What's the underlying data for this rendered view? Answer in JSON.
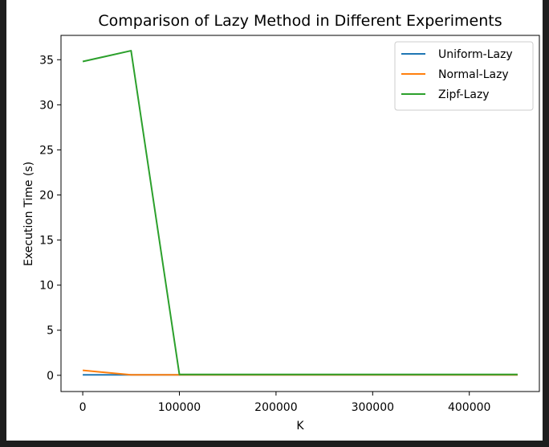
{
  "chart_data": {
    "type": "line",
    "title": "Comparison of Lazy Method in Different Experiments",
    "xlabel": "K",
    "ylabel": "Execution Time (s)",
    "xlim": [
      -22500,
      472500
    ],
    "ylim": [
      -1.8,
      37.7
    ],
    "xticks": [
      0,
      100000,
      200000,
      300000,
      400000
    ],
    "yticks": [
      0,
      5,
      10,
      15,
      20,
      25,
      30,
      35
    ],
    "grid": false,
    "legend_position": "top-right",
    "x": [
      0,
      50000,
      100000,
      150000,
      200000,
      250000,
      300000,
      350000,
      400000,
      450000
    ],
    "series": [
      {
        "name": "Uniform-Lazy",
        "color": "#1f77b4",
        "values": [
          0.05,
          0.05,
          0.05,
          0.05,
          0.05,
          0.05,
          0.05,
          0.05,
          0.05,
          0.05
        ]
      },
      {
        "name": "Normal-Lazy",
        "color": "#ff7f0e",
        "values": [
          0.55,
          0.05,
          0.05,
          0.05,
          0.05,
          0.05,
          0.05,
          0.05,
          0.05,
          0.05
        ]
      },
      {
        "name": "Zipf-Lazy",
        "color": "#2ca02c",
        "values": [
          34.8,
          36.0,
          0.1,
          0.1,
          0.1,
          0.1,
          0.1,
          0.1,
          0.1,
          0.1
        ]
      }
    ]
  }
}
